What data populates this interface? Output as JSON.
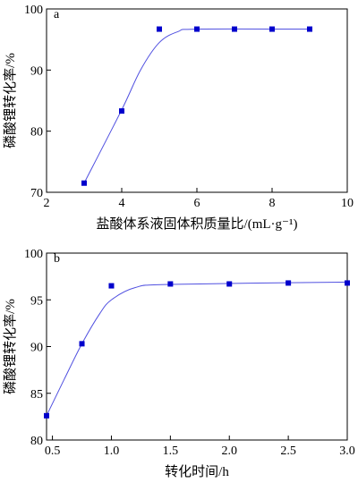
{
  "chart_data": [
    {
      "type": "scatter",
      "title": "a",
      "x_label": "盐酸体系液固体积质量比/(mL·g⁻¹)",
      "y_label": "磷酸锂转化率/%",
      "x": [
        3,
        4,
        5,
        6,
        7,
        8,
        9
      ],
      "values": [
        71.5,
        83.3,
        96.7,
        96.7,
        96.7,
        96.7,
        96.7
      ],
      "curve": {
        "x": [
          3,
          4,
          4.5,
          5,
          5.5,
          6,
          9
        ],
        "values": [
          71.5,
          83.5,
          90,
          94.5,
          96.3,
          96.7,
          96.7
        ]
      },
      "color": "#0000cc",
      "curve_color": "#5050e0",
      "xlim": [
        2,
        10
      ],
      "xticks": [
        2,
        4,
        6,
        8,
        10
      ],
      "ylim": [
        70,
        100
      ],
      "yticks": [
        70,
        80,
        90,
        100
      ]
    },
    {
      "type": "scatter",
      "title": "b",
      "x_label": "转化时间/h",
      "y_label": "磷酸锂转化率/%",
      "x": [
        0.45,
        0.75,
        1.0,
        1.5,
        2.0,
        2.5,
        3.0
      ],
      "values": [
        82.6,
        90.3,
        96.5,
        96.7,
        96.7,
        96.8,
        96.8
      ],
      "curve": {
        "x": [
          0.45,
          0.6,
          0.75,
          0.9,
          1.0,
          1.2,
          1.5,
          3.0
        ],
        "values": [
          82.6,
          86.5,
          90.3,
          93.5,
          95,
          96.3,
          96.65,
          96.9
        ]
      },
      "color": "#0000cc",
      "curve_color": "#5050e0",
      "xlim": [
        0.45,
        3.0
      ],
      "xticks": [
        {
          "value": 0.5,
          "label": "0.5"
        },
        {
          "value": 1,
          "label": "1.0"
        },
        {
          "value": 1.5,
          "label": "1.5"
        },
        {
          "value": 2,
          "label": "2.0"
        },
        {
          "value": 2.5,
          "label": "2.5"
        },
        {
          "value": 3,
          "label": "3.0"
        }
      ],
      "ylim": [
        80,
        100
      ],
      "yticks": [
        80,
        85,
        90,
        95,
        100
      ]
    }
  ]
}
